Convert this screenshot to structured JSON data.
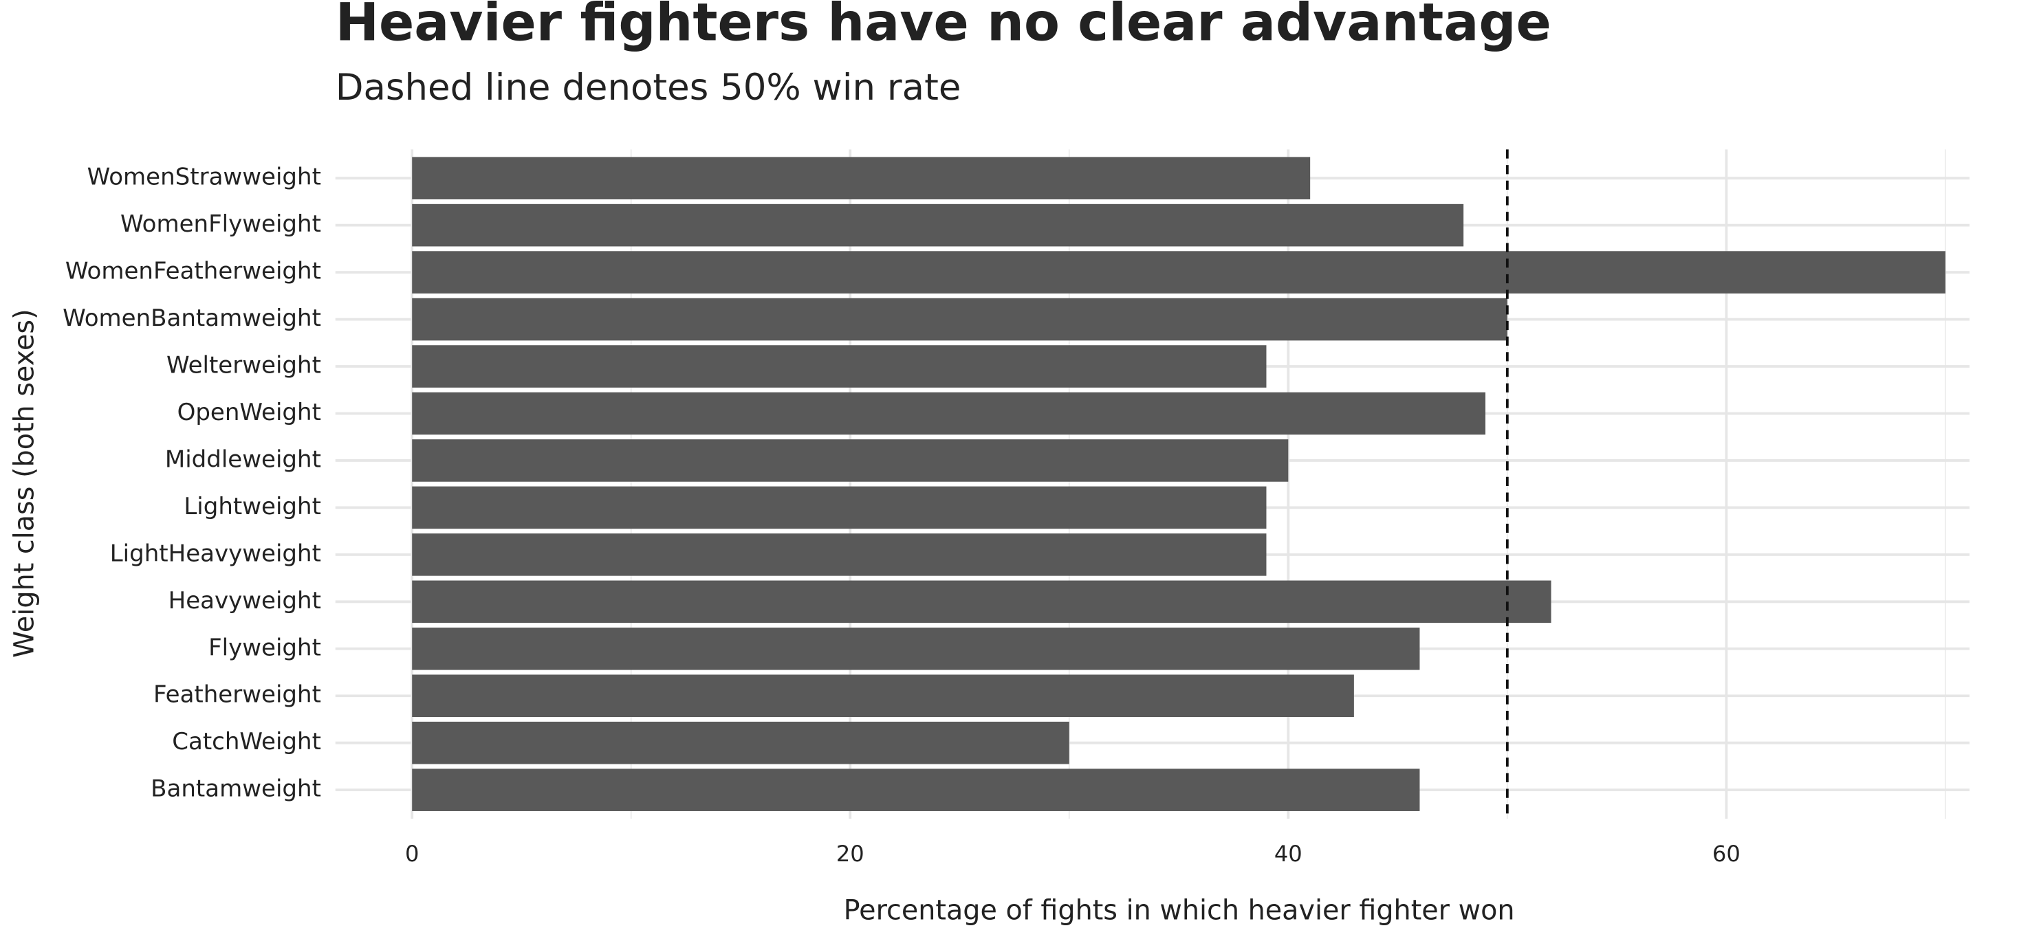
{
  "chart_data": {
    "type": "barh",
    "title": "Heavier fighters have no clear advantage",
    "subtitle": "Dashed line denotes 50% win rate",
    "x_label": "Percentage of fights in which heavier fighter won",
    "y_label": "Weight class (both sexes)",
    "categories": [
      "WomenStrawweight",
      "WomenFlyweight",
      "WomenFeatherweight",
      "WomenBantamweight",
      "Welterweight",
      "OpenWeight",
      "Middleweight",
      "Lightweight",
      "LightHeavyweight",
      "Heavyweight",
      "Flyweight",
      "Featherweight",
      "CatchWeight",
      "Bantamweight"
    ],
    "values": [
      41,
      48,
      70,
      50,
      39,
      49,
      40,
      39,
      39,
      52,
      46,
      43,
      30,
      46
    ],
    "color": "#595959",
    "xlim": [
      -3.5,
      71.1
    ],
    "xticks": [
      0,
      20,
      40,
      60
    ],
    "minor_xticks": [
      10,
      30,
      50,
      70
    ],
    "reference_line": 50,
    "grid": true
  }
}
